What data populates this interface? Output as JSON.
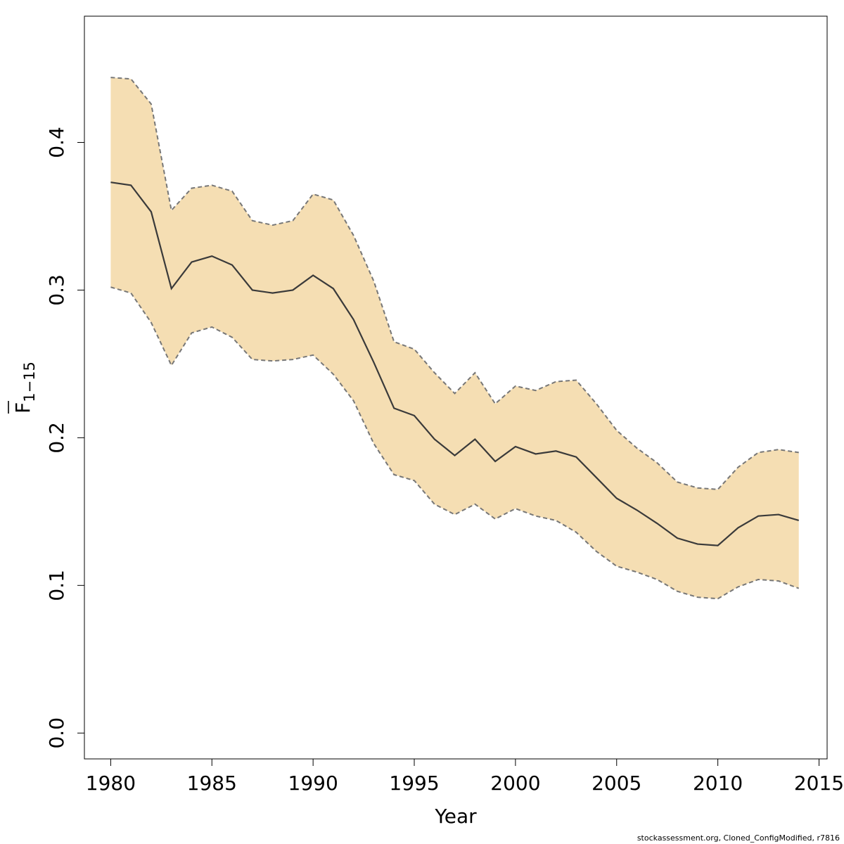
{
  "chart_data": {
    "type": "area",
    "xlabel": "Year",
    "ylabel_main": "F",
    "ylabel_sub": "1−15",
    "xlim": [
      1978.7,
      2015.4
    ],
    "ylim": [
      -0.0175,
      0.4855
    ],
    "xticks": [
      1980,
      1985,
      1990,
      1995,
      2000,
      2005,
      2010,
      2015
    ],
    "yticks": [
      0.0,
      0.1,
      0.2,
      0.3,
      0.4
    ],
    "ytick_labels": [
      "0.0",
      "0.1",
      "0.2",
      "0.3",
      "0.4"
    ],
    "x": [
      1980,
      1981,
      1982,
      1983,
      1984,
      1985,
      1986,
      1987,
      1988,
      1989,
      1990,
      1991,
      1992,
      1993,
      1994,
      1995,
      1996,
      1997,
      1998,
      1999,
      2000,
      2001,
      2002,
      2003,
      2004,
      2005,
      2006,
      2007,
      2008,
      2009,
      2010,
      2011,
      2012,
      2013,
      2014
    ],
    "estimate": [
      0.373,
      0.371,
      0.353,
      0.301,
      0.319,
      0.323,
      0.317,
      0.3,
      0.298,
      0.3,
      0.31,
      0.301,
      0.28,
      0.251,
      0.22,
      0.215,
      0.199,
      0.188,
      0.199,
      0.184,
      0.194,
      0.189,
      0.191,
      0.187,
      0.173,
      0.159,
      0.151,
      0.142,
      0.132,
      0.128,
      0.127,
      0.139,
      0.147,
      0.148,
      0.144
    ],
    "lower": [
      0.302,
      0.298,
      0.278,
      0.249,
      0.271,
      0.275,
      0.268,
      0.253,
      0.252,
      0.253,
      0.256,
      0.243,
      0.225,
      0.196,
      0.175,
      0.171,
      0.155,
      0.148,
      0.155,
      0.145,
      0.152,
      0.147,
      0.144,
      0.136,
      0.123,
      0.113,
      0.109,
      0.104,
      0.096,
      0.092,
      0.091,
      0.099,
      0.104,
      0.103,
      0.098
    ],
    "upper": [
      0.444,
      0.443,
      0.426,
      0.354,
      0.369,
      0.371,
      0.367,
      0.347,
      0.344,
      0.347,
      0.365,
      0.361,
      0.337,
      0.306,
      0.265,
      0.26,
      0.244,
      0.23,
      0.244,
      0.223,
      0.235,
      0.232,
      0.238,
      0.239,
      0.223,
      0.205,
      0.193,
      0.183,
      0.17,
      0.166,
      0.165,
      0.18,
      0.19,
      0.192,
      0.19
    ],
    "colors": {
      "band": "#f5deb3",
      "line": "#3a3a3a",
      "bound": "#777777",
      "axis": "#000000"
    }
  },
  "footer": "stockassessment.org, Cloned_ConfigModified, r7816"
}
